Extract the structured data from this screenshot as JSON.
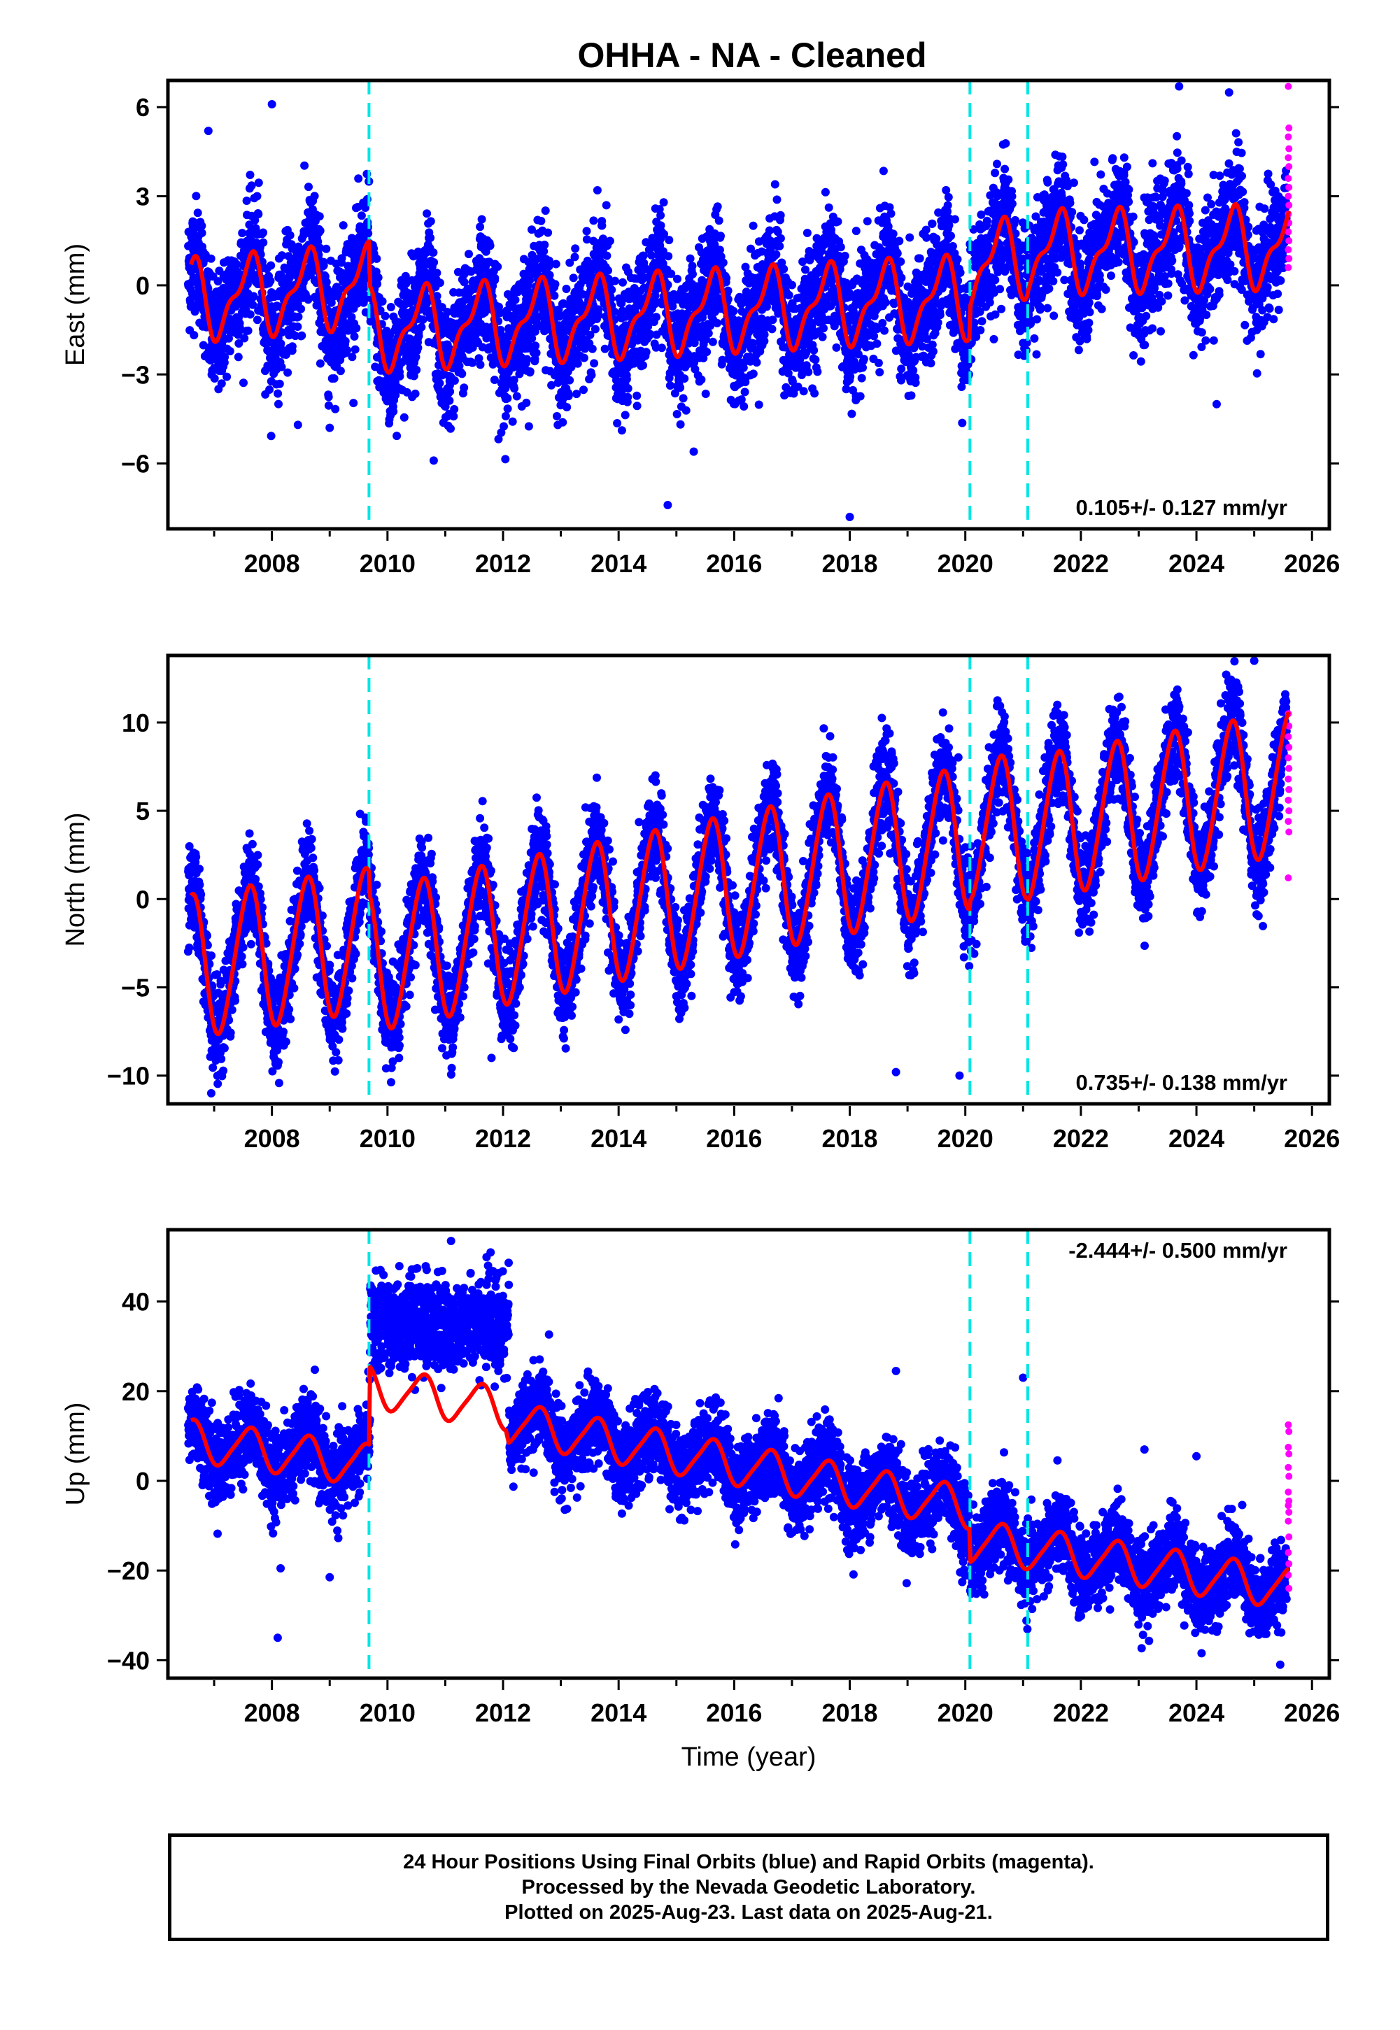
{
  "chart_data": [
    {
      "type": "scatter",
      "title": "OHHA  - NA - Cleaned",
      "ylabel": "East (mm)",
      "xlabel": "",
      "xlim": [
        2006.2,
        2026.3
      ],
      "ylim": [
        -8.2,
        6.9
      ],
      "x_ticks": [
        2008,
        2010,
        2012,
        2014,
        2016,
        2018,
        2020,
        2022,
        2024,
        2026
      ],
      "y_ticks": [
        6,
        3,
        0,
        -3,
        -6
      ],
      "y_tick_labels": [
        "6",
        "3",
        "0",
        "−3",
        "−6"
      ],
      "rate_label": "0.105+/- 0.127 mm/yr",
      "rate_position": "bottom-right",
      "breaks": [
        2009.68,
        2020.08,
        2021.08
      ],
      "model": {
        "trend": [
          [
            2006.6,
            -0.5
          ],
          [
            2009.68,
            0.0
          ],
          [
            2009.7,
            -1.5
          ],
          [
            2020.07,
            -0.4
          ],
          [
            2020.09,
            0.6
          ],
          [
            2021.07,
            1.0
          ],
          [
            2021.09,
            1.1
          ],
          [
            2025.6,
            1.3
          ]
        ],
        "annual_amplitude": 1.2,
        "semiannual_amplitude": 0.5
      },
      "scatter_spread": 1.0,
      "rapid_orbits_y": [
        6.7,
        5.3,
        5.0,
        4.6,
        4.3,
        4.0,
        3.6,
        3.3,
        3.0,
        2.7,
        2.4,
        2.1,
        1.8,
        1.5,
        1.2,
        0.9,
        0.6
      ],
      "outliers": [
        [
          2008.0,
          6.1
        ],
        [
          2006.9,
          5.2
        ],
        [
          2023.7,
          6.7
        ],
        [
          2018.0,
          -7.8
        ],
        [
          2014.85,
          -7.4
        ],
        [
          2008.45,
          -4.7
        ],
        [
          2009.0,
          -4.8
        ],
        [
          2010.8,
          -5.9
        ],
        [
          2015.3,
          -5.6
        ],
        [
          2024.35,
          -4.0
        ]
      ]
    },
    {
      "type": "scatter",
      "title": "",
      "ylabel": "North (mm)",
      "xlabel": "",
      "xlim": [
        2006.2,
        2026.3
      ],
      "ylim": [
        -11.6,
        13.8
      ],
      "x_ticks": [
        2008,
        2010,
        2012,
        2014,
        2016,
        2018,
        2020,
        2022,
        2024,
        2026
      ],
      "y_ticks": [
        10,
        5,
        0,
        -5,
        -10
      ],
      "y_tick_labels": [
        "10",
        "5",
        "0",
        "−5",
        "−10"
      ],
      "rate_label": "0.735+/- 0.138 mm/yr",
      "rate_position": "bottom-right",
      "breaks": [
        2009.68,
        2020.08,
        2021.08
      ],
      "model": {
        "trend": [
          [
            2006.6,
            -3.8
          ],
          [
            2009.68,
            -2.3
          ],
          [
            2009.7,
            -3.5
          ],
          [
            2020.07,
            3.5
          ],
          [
            2020.09,
            4.0
          ],
          [
            2021.07,
            4.1
          ],
          [
            2021.09,
            4.0
          ],
          [
            2025.6,
            6.6
          ]
        ],
        "annual_amplitude": 4.0,
        "semiannual_amplitude": 0.4
      },
      "scatter_spread": 1.3,
      "rapid_orbits_y": [
        10.5,
        9.8,
        9.2,
        8.6,
        8.0,
        7.4,
        6.8,
        6.2,
        5.6,
        5.0,
        4.4,
        3.8,
        1.2
      ],
      "outliers": [
        [
          2025.0,
          13.5
        ],
        [
          2006.95,
          -11.0
        ],
        [
          2019.9,
          -10.0
        ],
        [
          2018.8,
          -9.8
        ],
        [
          2010.2,
          -9.0
        ],
        [
          2011.8,
          -9.0
        ]
      ]
    },
    {
      "type": "scatter",
      "title": "",
      "ylabel": "Up (mm)",
      "xlabel": "Time (year)",
      "xlim": [
        2006.2,
        2026.3
      ],
      "ylim": [
        -44.0,
        56.0
      ],
      "x_ticks": [
        2008,
        2010,
        2012,
        2014,
        2016,
        2018,
        2020,
        2022,
        2024,
        2026
      ],
      "y_ticks": [
        40,
        20,
        0,
        -20,
        -40
      ],
      "y_tick_labels": [
        "40",
        "20",
        "0",
        "−20",
        "−40"
      ],
      "rate_label": "-2.444+/- 0.500 mm/yr",
      "rate_position": "top-right",
      "breaks": [
        2009.68,
        2020.08,
        2021.08
      ],
      "model": {
        "trend": [
          [
            2006.6,
            9.0
          ],
          [
            2009.68,
            3.5
          ],
          [
            2009.7,
            21.0
          ],
          [
            2012.05,
            16.0
          ],
          [
            2012.1,
            13.0
          ],
          [
            2020.07,
            -6.0
          ],
          [
            2020.09,
            -13.5
          ],
          [
            2021.07,
            -15.0
          ],
          [
            2021.09,
            -15.0
          ],
          [
            2025.6,
            -24.0
          ]
        ],
        "annual_amplitude": 4.5,
        "semiannual_amplitude": 0.8
      },
      "scatter_spread": 4.5,
      "offset_cluster": {
        "x": [
          2009.7,
          2012.1
        ],
        "mean": 35.0,
        "spread": 5.0
      },
      "rapid_orbits_y": [
        12.5,
        11.0,
        7.5,
        6.0,
        3.0,
        1.0,
        -2.5,
        -4.5,
        -5.5,
        -7.0,
        -9.0,
        -12.5,
        -16.0,
        -18.5,
        -21.0,
        -24.0
      ],
      "outliers": [
        [
          2011.1,
          53.5
        ],
        [
          2008.1,
          -35.0
        ],
        [
          2008.15,
          -19.5
        ],
        [
          2009.0,
          -21.5
        ],
        [
          2018.8,
          24.5
        ],
        [
          2021.0,
          23.0
        ],
        [
          2023.1,
          7.0
        ],
        [
          2024.0,
          5.5
        ],
        [
          2025.45,
          -41.0
        ]
      ]
    }
  ],
  "colors": {
    "final_orbits": "#0000ff",
    "rapid_orbits": "#ff00ff",
    "model": "#ff0000",
    "breaks": "#00e5e5"
  },
  "footer": {
    "line1": "24 Hour Positions Using Final Orbits (blue) and Rapid Orbits (magenta).",
    "line2": "Processed by the Nevada Geodetic Laboratory.",
    "line3": "Plotted on 2025-Aug-23. Last data on 2025-Aug-21."
  }
}
